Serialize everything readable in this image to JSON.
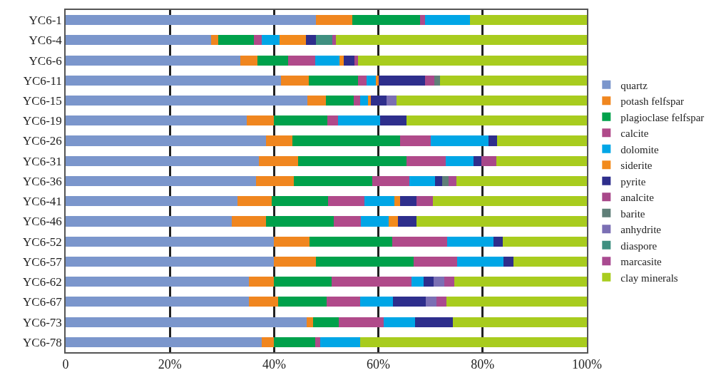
{
  "chart_data": {
    "type": "bar",
    "orientation": "horizontal",
    "stacked": true,
    "grid": "x",
    "legend": "right",
    "categories": [
      "YC6-1",
      "YC6-4",
      "YC6-6",
      "YC6-11",
      "YC6-15",
      "YC6-19",
      "YC6-26",
      "YC6-31",
      "YC6-36",
      "YC6-41",
      "YC6-46",
      "YC6-52",
      "YC6-57",
      "YC6-62",
      "YC6-67",
      "YC6-73",
      "YC6-78"
    ],
    "xlim": [
      0,
      100
    ],
    "xticks": [
      0,
      {
        "value": 20,
        "label": "20%"
      },
      {
        "value": 40,
        "label": "40%"
      },
      {
        "value": 60,
        "label": "60%"
      },
      {
        "value": 80,
        "label": "80%"
      },
      {
        "value": 100,
        "label": "100%"
      }
    ],
    "series": [
      {
        "name": "quartz",
        "color": "#7b96cc",
        "values": [
          48,
          27.9,
          33.5,
          41.3,
          46.4,
          34.7,
          38.4,
          37.1,
          36.5,
          33.0,
          31.9,
          39.9,
          39.9,
          35.2,
          35.2,
          46.2,
          37.6
        ]
      },
      {
        "name": "potash felfspar",
        "color": "#f0861f",
        "values": [
          7,
          1.4,
          3.3,
          5.3,
          3.5,
          5.2,
          5.1,
          7.5,
          7.3,
          6.5,
          6.5,
          6.9,
          8.1,
          4.7,
          5.6,
          1.3,
          2.3
        ]
      },
      {
        "name": "plagioclase felfspar",
        "color": "#00a14b",
        "values": [
          13,
          6.8,
          5.9,
          9.5,
          5.4,
          10.3,
          20.7,
          20.8,
          15.0,
          10.8,
          13.0,
          15.9,
          18.8,
          11.1,
          9.3,
          4.9,
          8.0
        ]
      },
      {
        "name": "calcite",
        "color": "#b04a8a",
        "values": [
          1,
          1.5,
          5.2,
          1.6,
          1.2,
          2.1,
          5.8,
          7.5,
          7.1,
          7.0,
          5.2,
          10.5,
          8.3,
          15.3,
          6.4,
          8.6,
          0.9
        ]
      },
      {
        "name": "dolomite",
        "color": "#00a6e6",
        "values": [
          8.5,
          3.4,
          4.6,
          1.8,
          1.5,
          8.0,
          11.1,
          5.3,
          5.0,
          5.8,
          5.4,
          8.9,
          8.9,
          2.4,
          6.3,
          6.0,
          7.7
        ]
      },
      {
        "name": "siderite",
        "color": "#f28a1c",
        "values": [
          null,
          5.1,
          0.9,
          0.6,
          0.6,
          null,
          null,
          null,
          null,
          1.1,
          1.7,
          null,
          null,
          null,
          null,
          null,
          null
        ]
      },
      {
        "name": "pyrite",
        "color": "#2e2e8c",
        "values": [
          null,
          1.9,
          2.0,
          8.8,
          3.0,
          5.1,
          1.7,
          1.6,
          1.3,
          3.1,
          3.6,
          1.8,
          1.9,
          1.9,
          6.3,
          7.3,
          null
        ]
      },
      {
        "name": "analcite",
        "color": "#a8488a",
        "values": [
          null,
          null,
          0.7,
          1.8,
          null,
          null,
          null,
          2.8,
          null,
          3.2,
          null,
          null,
          null,
          null,
          null,
          null,
          null
        ]
      },
      {
        "name": "barite",
        "color": "#5f7f78",
        "values": [
          null,
          null,
          null,
          1.1,
          null,
          null,
          null,
          null,
          1.3,
          null,
          null,
          null,
          null,
          null,
          null,
          null,
          null
        ]
      },
      {
        "name": "anhydrite",
        "color": "#7b6fb4",
        "values": [
          null,
          null,
          null,
          null,
          1.9,
          null,
          null,
          null,
          null,
          null,
          null,
          null,
          null,
          2.0,
          2.1,
          null,
          null
        ]
      },
      {
        "name": "diaspore",
        "color": "#3f8f80",
        "values": [
          null,
          3.2,
          null,
          null,
          null,
          null,
          null,
          null,
          null,
          null,
          null,
          null,
          null,
          null,
          null,
          null,
          null
        ]
      },
      {
        "name": "marcasite",
        "color": "#a94a90",
        "values": [
          null,
          0.7,
          null,
          null,
          null,
          null,
          null,
          null,
          1.5,
          null,
          null,
          null,
          null,
          1.9,
          1.8,
          null,
          null
        ]
      },
      {
        "name": "clay minerals",
        "color": "#a8cc1e",
        "values": [
          22.5,
          48.1,
          43.9,
          28.2,
          36.5,
          34.6,
          17.2,
          17.4,
          25.0,
          29.5,
          32.7,
          16.1,
          14.1,
          25.5,
          27.0,
          25.7,
          43.5
        ]
      }
    ]
  }
}
